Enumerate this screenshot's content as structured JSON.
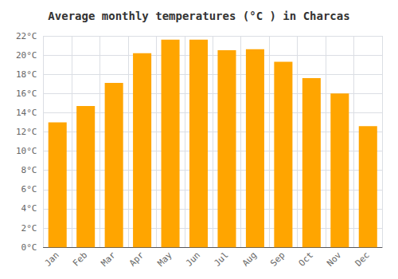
{
  "chart_data": {
    "type": "bar",
    "title": "Average monthly temperatures (°C ) in Charcas",
    "categories": [
      "Jan",
      "Feb",
      "Mar",
      "Apr",
      "May",
      "Jun",
      "Jul",
      "Aug",
      "Sep",
      "Oct",
      "Nov",
      "Dec"
    ],
    "values": [
      13.0,
      14.7,
      17.1,
      20.2,
      21.6,
      21.6,
      20.5,
      20.6,
      19.3,
      17.6,
      16.0,
      12.6
    ],
    "color": "#FFA500",
    "ylim": [
      0,
      22
    ],
    "yticks": [
      {
        "value": 0,
        "label": "0°C"
      },
      {
        "value": 2,
        "label": "2°C"
      },
      {
        "value": 4,
        "label": "4°C"
      },
      {
        "value": 6,
        "label": "6°C"
      },
      {
        "value": 8,
        "label": "8°C"
      },
      {
        "value": 10,
        "label": "10°C"
      },
      {
        "value": 12,
        "label": "12°C"
      },
      {
        "value": 14,
        "label": "14°C"
      },
      {
        "value": 16,
        "label": "16°C"
      },
      {
        "value": 18,
        "label": "18°C"
      },
      {
        "value": 20,
        "label": "20°C"
      },
      {
        "value": 22,
        "label": "22°C"
      }
    ],
    "grid": true
  }
}
